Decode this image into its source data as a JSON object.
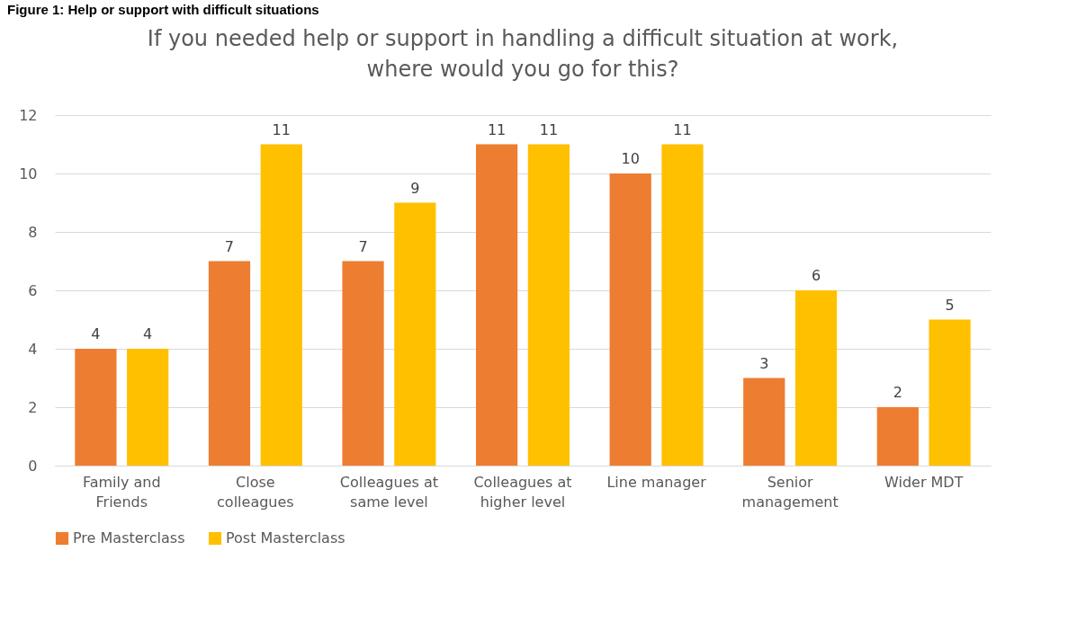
{
  "chart_data": {
    "type": "bar",
    "title": [
      "If you needed help or support in handling a difficult situation at work,",
      "where would you go for this?"
    ],
    "annotations": [
      "Figure 1: Help or support with difficult situations"
    ],
    "categories": [
      "Family and Friends",
      "Close colleagues",
      "Colleagues at same level",
      "Colleagues at higher level",
      "Line manager",
      "Senior management",
      "Wider MDT"
    ],
    "series": [
      {
        "name": "Pre Masterclass",
        "color": "#ed7d31",
        "values": [
          4,
          7,
          7,
          11,
          10,
          3,
          2
        ]
      },
      {
        "name": "Post Masterclass",
        "color": "#ffc000",
        "values": [
          4,
          11,
          9,
          11,
          11,
          6,
          5
        ]
      }
    ],
    "ylim": [
      0,
      12
    ],
    "yticks": [
      0,
      2,
      4,
      6,
      8,
      10,
      12
    ],
    "grid": "y",
    "legend": "bottom",
    "data_labels": true
  }
}
